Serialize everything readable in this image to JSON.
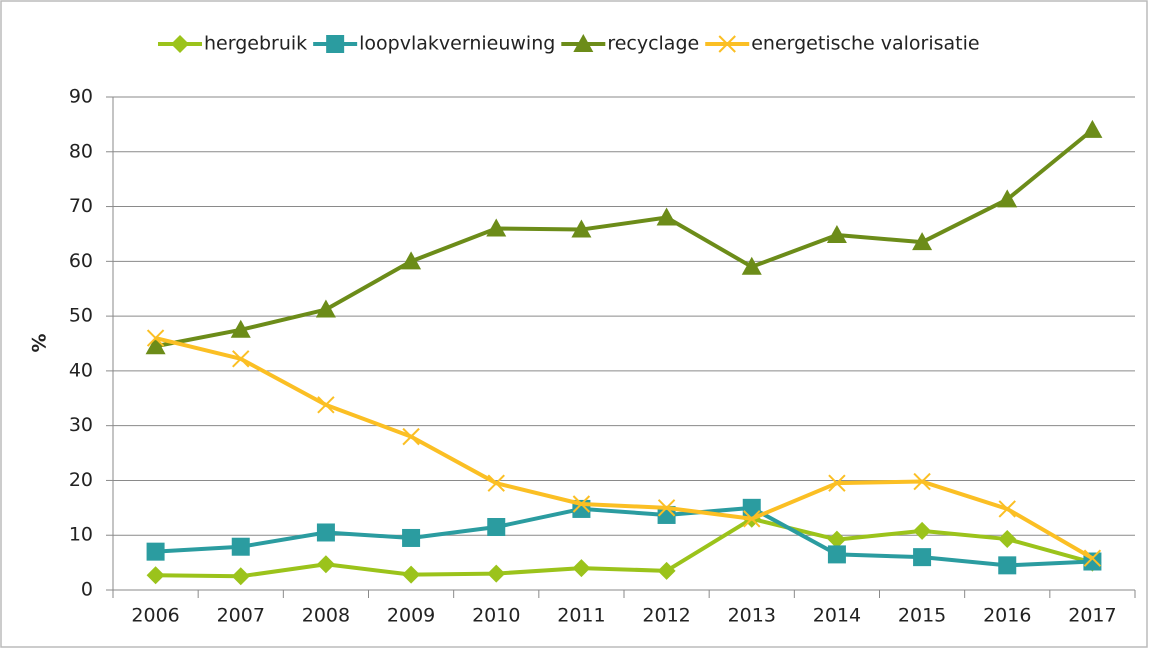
{
  "chart_data": {
    "type": "line",
    "y_label": "%",
    "categories": [
      "2006",
      "2007",
      "2008",
      "2009",
      "2010",
      "2011",
      "2012",
      "2013",
      "2014",
      "2015",
      "2016",
      "2017"
    ],
    "series": [
      {
        "name": "hergebruik",
        "color": "#9bc31b",
        "marker": "diamond",
        "values": [
          2.7,
          2.5,
          4.7,
          2.8,
          3,
          4,
          3.5,
          13,
          9.2,
          10.8,
          9.3,
          5
        ]
      },
      {
        "name": "loopvlakvernieuwing",
        "color": "#2b9ca0",
        "marker": "square",
        "values": [
          7,
          7.9,
          10.5,
          9.5,
          11.5,
          14.8,
          13.7,
          15,
          6.5,
          6,
          4.5,
          5.2
        ]
      },
      {
        "name": "recyclage",
        "color": "#6c8c19",
        "marker": "triangle",
        "values": [
          44.5,
          47.5,
          51.2,
          60,
          66,
          65.8,
          68,
          59,
          64.8,
          63.5,
          71.3,
          84
        ]
      },
      {
        "name": "energetische valorisatie",
        "color": "#fbbf24",
        "marker": "x",
        "values": [
          46,
          42.2,
          33.8,
          28,
          19.5,
          15.7,
          15,
          13,
          19.5,
          19.8,
          14.8,
          5.8
        ]
      }
    ],
    "ylim": [
      0,
      90
    ],
    "yticks": [
      0,
      10,
      20,
      30,
      40,
      50,
      60,
      70,
      80,
      90
    ],
    "grid": true,
    "legend": "top"
  }
}
